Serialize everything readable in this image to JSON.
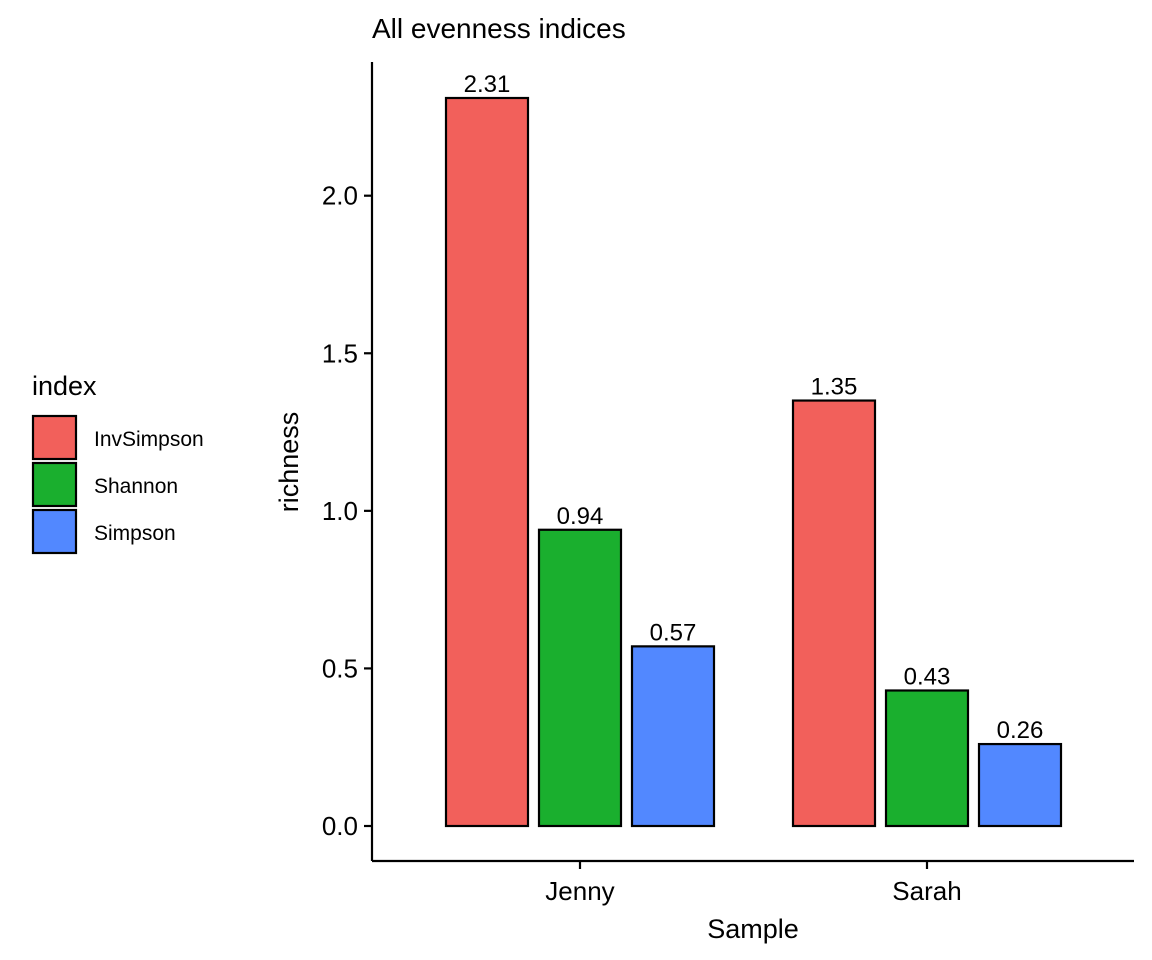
{
  "chart_data": {
    "type": "bar",
    "title": "All evenness indices",
    "xlabel": "Sample",
    "ylabel": "richness",
    "categories": [
      "Jenny",
      "Sarah"
    ],
    "series": [
      {
        "name": "InvSimpson",
        "values": [
          2.31,
          1.35
        ],
        "labels": [
          "2.31",
          "1.35"
        ],
        "color": "#F2605B"
      },
      {
        "name": "Shannon",
        "values": [
          0.94,
          0.43
        ],
        "labels": [
          "0.94",
          "0.43"
        ],
        "color": "#1AAF2E"
      },
      {
        "name": "Simpson",
        "values": [
          0.57,
          0.26
        ],
        "labels": [
          "0.57",
          "0.26"
        ],
        "color": "#5288FF"
      }
    ],
    "ylim": [
      0,
      2.31
    ],
    "yticks": [
      0,
      0.5,
      1,
      1.5,
      2
    ],
    "ytick_labels": [
      "0.0",
      "0.5",
      "1.0",
      "1.5",
      "2.0"
    ],
    "grid": false,
    "legend": {
      "title": "index",
      "position": "left"
    }
  }
}
